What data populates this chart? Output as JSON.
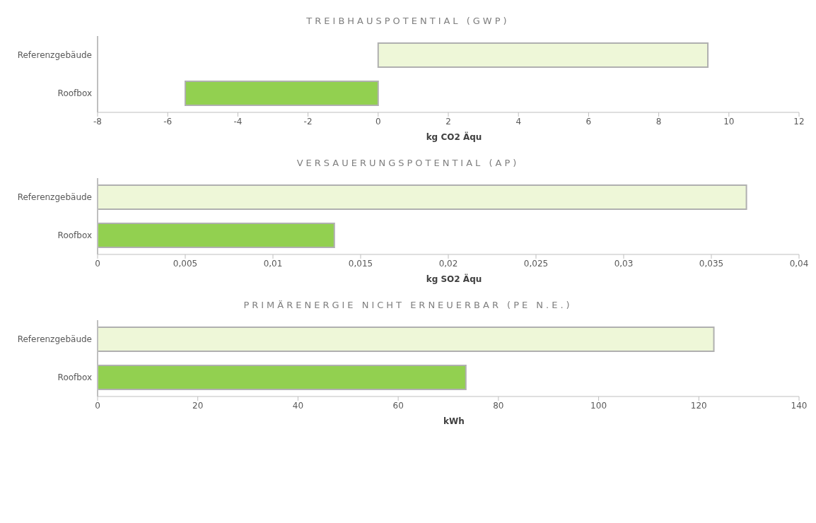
{
  "chart_data": [
    {
      "type": "bar",
      "orientation": "horizontal",
      "title": "TREIBHAUSPOTENTIAL (GWP)",
      "xlabel": "kg CO2 Äqu",
      "categories": [
        "Referenzgebäude",
        "Roofbox"
      ],
      "values": [
        9.4,
        -5.5
      ],
      "colors": [
        "#eef7d8",
        "#92d050"
      ],
      "xlim": [
        -8,
        12
      ],
      "xticks": [
        -8,
        -6,
        -4,
        -2,
        0,
        2,
        4,
        6,
        8,
        10,
        12
      ],
      "grid": false,
      "legend": false
    },
    {
      "type": "bar",
      "orientation": "horizontal",
      "title": "VERSAUERUNGSPOTENTIAL (AP)",
      "xlabel": "kg SO2 Äqu",
      "categories": [
        "Referenzgebäude",
        "Roofbox"
      ],
      "values": [
        0.037,
        0.0135
      ],
      "colors": [
        "#eef7d8",
        "#92d050"
      ],
      "xlim": [
        0,
        0.04
      ],
      "xticks": [
        0,
        {
          "value": 0.005,
          "label": "0,005"
        },
        {
          "value": 0.01,
          "label": "0,01"
        },
        {
          "value": 0.015,
          "label": "0,015"
        },
        {
          "value": 0.02,
          "label": "0,02"
        },
        {
          "value": 0.025,
          "label": "0,025"
        },
        {
          "value": 0.03,
          "label": "0,03"
        },
        {
          "value": 0.035,
          "label": "0,035"
        },
        {
          "value": 0.04,
          "label": "0,04"
        }
      ],
      "grid": false,
      "legend": false
    },
    {
      "type": "bar",
      "orientation": "horizontal",
      "title": "PRIMÄRENERGIE NICHT ERNEUERBAR (PE N.E.)",
      "xlabel": "kWh",
      "categories": [
        "Referenzgebäude",
        "Roofbox"
      ],
      "values": [
        123,
        73.5
      ],
      "colors": [
        "#eef7d8",
        "#92d050"
      ],
      "xlim": [
        0,
        140
      ],
      "xticks": [
        0,
        20,
        40,
        60,
        80,
        100,
        120,
        140
      ],
      "grid": false,
      "legend": false
    }
  ]
}
